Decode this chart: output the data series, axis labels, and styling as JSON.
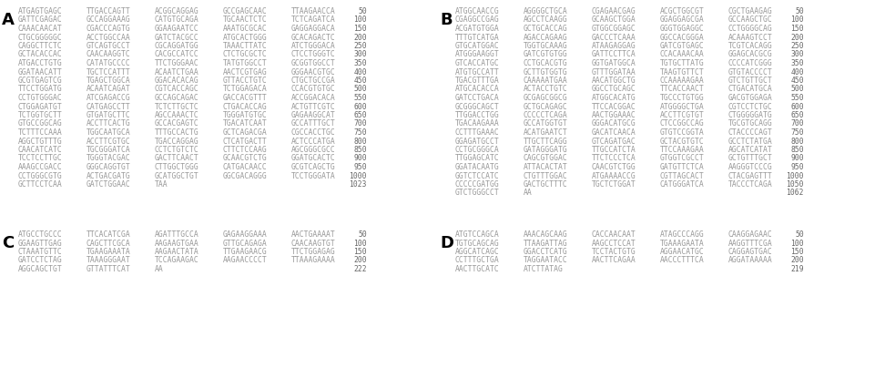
{
  "panel_A": {
    "label": "A",
    "lines": [
      [
        "ATGAGTGAGC",
        "TTGACCAGTT",
        "ACGGCAGGAG",
        "GCCGAGCAAC",
        "TTAAGAACCA",
        "50"
      ],
      [
        "GATTCGAGAC",
        "GCCAGGAAAG",
        "CATGTGCAGA",
        "TGCAACTCTC",
        "TCTCAGATCA",
        "100"
      ],
      [
        "CAAACAACAT",
        "CGACCCAGTG",
        "GGAAGAATCC",
        "AAATGCGCAC",
        "GAGGAGGACA",
        "150"
      ],
      [
        "CTGCGGGGGC",
        "ACCTGGCCAA",
        "GATCTACGCC",
        "ATGCACTGGG",
        "GCACAGACTC",
        "200"
      ],
      [
        "CAGGCTTCTC",
        "GTCAGTGCCT",
        "CGCAGGATGG",
        "TAAACTTATC",
        "ATCTGGGACA",
        "250"
      ],
      [
        "GCTACACCAC",
        "CAACAAGGTC",
        "CACGCCATCC",
        "CTCTGCGCTC",
        "CTCCTGGGTC",
        "300"
      ],
      [
        "ATGACCTGTG",
        "CATATGCCCC",
        "TTCTGGGAAC",
        "TATGTGGCCT",
        "GCGGTGGCCT",
        "350"
      ],
      [
        "GGATAACATT",
        "TGCTCCATTT",
        "ACAATCTGAA",
        "AACTCGTGAG",
        "GGGAACGTGC",
        "400"
      ],
      [
        "GCGTGAGTCG",
        "TGAGCTGGCA",
        "GGACACACAG",
        "GTTACCTGTC",
        "CTGCTGCCGA",
        "450"
      ],
      [
        "TTCCTGGATG",
        "ACAATCAGAT",
        "CGTCACCAGC",
        "TCTGGAGACA",
        "CCACGTGTGC",
        "500"
      ],
      [
        "CCTGTGGGAC",
        "ATCGAGACCG",
        "GCCAGCAGAC",
        "GACCACGTTT",
        "ACCGGACACA",
        "550"
      ],
      [
        "CTGGAGATGT",
        "CATGAGCCTT",
        "TCTCTTGCTC",
        "CTGACACCAG",
        "ACTGTTCGTC",
        "600"
      ],
      [
        "TCTGGTGCTT",
        "GTGATGCTTC",
        "AGCCAAACTC",
        "TGGGATGTGC",
        "GAGAAGGCAT",
        "650"
      ],
      [
        "GTGCCGGCAG",
        "ACCTTCACTG",
        "GCCACGAGTC",
        "TGACATCAAT",
        "GCCATTTGCT",
        "700"
      ],
      [
        "TCTTTCCAAA",
        "TGGCAATGCA",
        "TTTGCCACTG",
        "GCTCAGACGA",
        "CGCCACCTGC",
        "750"
      ],
      [
        "AGGCTGTTTG",
        "ACCTTCGTGC",
        "TGACCAGGAG",
        "CTCATGACTT",
        "ACTCCCATGA",
        "800"
      ],
      [
        "CAACATCATC",
        "TGCGGGATCA",
        "CCTCTGTCTC",
        "CTTCTCCAAG",
        "AGCGGGCGCC",
        "850"
      ],
      [
        "TCCTCCTTGC",
        "TGGGTACGAC",
        "GACTTCAACT",
        "GCAACGTCTG",
        "GGATGCACTC",
        "900"
      ],
      [
        "AAAGCCGACC",
        "GGGCAGGTGT",
        "CTTGGCTGGG",
        "CATGACAACC",
        "GCGTCAGCTG",
        "950"
      ],
      [
        "CCTGGGCGTG",
        "ACTGACGATG",
        "GCATGGCTGT",
        "GGCGACAGGG",
        "TCCTGGGATA",
        "1000"
      ],
      [
        "GCTTCCTCAA",
        "GATCTGGAAC",
        "TAA",
        "",
        "",
        "1023"
      ]
    ]
  },
  "panel_B": {
    "label": "B",
    "lines": [
      [
        "ATGGCAACCG",
        "AGGGGCTGCA",
        "CGAGAACGAG",
        "ACGCTGGCGT",
        "CGCTGAAGAG",
        "50"
      ],
      [
        "CGAGGCCGAG",
        "AGCCTCAAGG",
        "GCAAGCTGGA",
        "GGAGGAGCGA",
        "GCCAAGCTGC",
        "100"
      ],
      [
        "ACGATGTGGA",
        "GCTGCACCAG",
        "GTGGCGGAGC",
        "GGGTGGAGGC",
        "CCTGGGGCAG",
        "150"
      ],
      [
        "TTTGTCATGA",
        "AGACCAGAAG",
        "GACCCTCAAA",
        "GGCCACGGGA",
        "ACAAAGTCCT",
        "200"
      ],
      [
        "GTGCATGGAC",
        "TGGTGCAAAG",
        "ATAAGAGGAG",
        "GATCGTGAGC",
        "TCGTCACAGG",
        "250"
      ],
      [
        "ATGGGAAGGT",
        "GATCGTGTGG",
        "GATTCCTTCA",
        "CCACAAACAA",
        "GGAGCACGCG",
        "300"
      ],
      [
        "GTCACCATGC",
        "CCTGCACGTG",
        "GGTGATGGCA",
        "TGTGCTTATG",
        "CCCCATCGGG",
        "350"
      ],
      [
        "ATGTGCCATT",
        "GCTTGTGGTG",
        "GTTTGGATAA",
        "TAAGTGTTCT",
        "GTGTACCCCT",
        "400"
      ],
      [
        "TGACGTTTGA",
        "CAAAAATGAA",
        "AACATGGCTG",
        "CCAAAAAGAA",
        "GTCTGTTGCT",
        "450"
      ],
      [
        "ATGCACACCA",
        "ACTACCTGTC",
        "GGCCTGCAGC",
        "TTCACCAACT",
        "CTGACATGCA",
        "500"
      ],
      [
        "GATCCTGACA",
        "GCGAGCGGCG",
        "ATGGCACATG",
        "TGCCCTGTGG",
        "GACGTGGAGA",
        "550"
      ],
      [
        "GCGGGCAGCT",
        "GCTGCAGAGC",
        "TTCCACGGAC",
        "ATGGGGCTGA",
        "CGTCCTCTGC",
        "600"
      ],
      [
        "TTGGACCTGG",
        "CCCCCTCAGA",
        "AACTGGAAAC",
        "ACCTTCGTGT",
        "CTGGGGGATG",
        "650"
      ],
      [
        "TGACAAGAAA",
        "GCCATGGTGT",
        "GGGACATGCG",
        "CTCCGGCCAG",
        "TGCGTGCAGG",
        "700"
      ],
      [
        "CCTTTGAAAC",
        "ACATGAATCT",
        "GACATCAACA",
        "GTGTCCGGTA",
        "CTACCCCAGT",
        "750"
      ],
      [
        "GGAGATGCCT",
        "TTGCTTCAGG",
        "GTCAGATGAC",
        "GCTACGTGTC",
        "GCCTCTATGA",
        "800"
      ],
      [
        "CCTGCGGGCA",
        "GATAGGGATG",
        "TTGCCATCTA",
        "TTCCAAAGAA",
        "AGCATCATAT",
        "850"
      ],
      [
        "TTGGAGCATC",
        "CAGCGTGGAC",
        "TTCTCCCTCA",
        "GTGGTCGCCT",
        "GCTGTTTGCT",
        "900"
      ],
      [
        "GGATACAATG",
        "ATTACACTAT",
        "CAACGTCTGG",
        "GATGTTCTCA",
        "AAGGGTCCCG",
        "950"
      ],
      [
        "GGTCTCCATC",
        "CTGTTTGGAC",
        "ATGAAAACCG",
        "CGTTAGCACT",
        "CTACGAGTTT",
        "1000"
      ],
      [
        "CCCCCGATGG",
        "GACTGCTTTC",
        "TGCTCTGGAT",
        "CATGGGATCA",
        "TACCCTCAGA",
        "1050"
      ],
      [
        "GTCTGGGCCT",
        "AA",
        "",
        "",
        "",
        "1062"
      ]
    ]
  },
  "panel_C": {
    "label": "C",
    "lines": [
      [
        "ATGCCTGCCC",
        "TTCACATCGA",
        "AGATTTGCCA",
        "GAGAAGGAAA",
        "AACTGAAAAT",
        "50"
      ],
      [
        "GGAAGTTGAG",
        "CAGCTTCGCA",
        "AAGAAGTGAA",
        "GTTGCAGAGA",
        "CAACAAGTGT",
        "100"
      ],
      [
        "CTAAATGTTC",
        "TGAAGAAATA",
        "AAGAACTATA",
        "TTGAAGAACG",
        "TTCTGGAGAG",
        "150"
      ],
      [
        "GATCCTCTAG",
        "TAAAGGGAAT",
        "TCCAGAAGAC",
        "AAGAACCCCT",
        "TTAAAGAAAA",
        "200"
      ],
      [
        "AGGCAGCTGT",
        "GTTATTTCAT",
        "AA",
        "",
        "",
        "222"
      ]
    ]
  },
  "panel_D": {
    "label": "D",
    "lines": [
      [
        "ATGTCCAGCA",
        "AAACAGCAAG",
        "CACCAACAAT",
        "ATAGCCCAGG",
        "CAAGGAGAAC",
        "50"
      ],
      [
        "TGTGCAGCAG",
        "TTAAGATTAG",
        "AAGCCTCCAT",
        "TGAAAGAATA",
        "AAGGTTTCGA",
        "100"
      ],
      [
        "AGGCATCAGC",
        "GGACCTCATG",
        "TCCTACTGTG",
        "AGGAACATGC",
        "CAGGAGTGAC",
        "150"
      ],
      [
        "CCTTTGCTGA",
        "TAGGAATACC",
        "AACTTCAGAA",
        "AACCCTTTCA",
        "AGGATAAAAA",
        "200"
      ],
      [
        "AACTTGCATC",
        "ATCTTATAG",
        "",
        "",
        "",
        "219"
      ]
    ]
  },
  "font_size": 5.8,
  "label_font_size": 13,
  "bg_color": "#ffffff",
  "text_color": "#000000",
  "sequence_color": "#999999",
  "number_color": "#666666"
}
